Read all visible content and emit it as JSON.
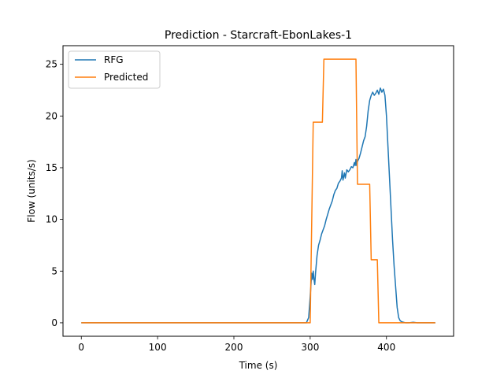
{
  "chart_data": {
    "type": "line",
    "title": "Prediction - Starcraft-EbonLakes-1",
    "xlabel": "Time (s)",
    "ylabel": "Flow (units/s)",
    "xlim": [
      -24,
      488
    ],
    "ylim": [
      -1.3,
      26.8
    ],
    "xticks": [
      0,
      100,
      200,
      300,
      400
    ],
    "yticks": [
      0,
      5,
      10,
      15,
      20,
      25
    ],
    "grid": false,
    "legend": "top-left",
    "series": [
      {
        "name": "RFG",
        "color": "#1f77b4",
        "points": [
          [
            0,
            0
          ],
          [
            100,
            0
          ],
          [
            200,
            0
          ],
          [
            295,
            0
          ],
          [
            298,
            0.5
          ],
          [
            300,
            2.5
          ],
          [
            302,
            4.8
          ],
          [
            303,
            4.2
          ],
          [
            304,
            5.0
          ],
          [
            305,
            4.2
          ],
          [
            306,
            3.7
          ],
          [
            307,
            4.8
          ],
          [
            309,
            6.5
          ],
          [
            311,
            7.5
          ],
          [
            313,
            8.0
          ],
          [
            315,
            8.6
          ],
          [
            317,
            9.0
          ],
          [
            319,
            9.4
          ],
          [
            321,
            10.0
          ],
          [
            323,
            10.5
          ],
          [
            325,
            11.0
          ],
          [
            327,
            11.4
          ],
          [
            329,
            11.8
          ],
          [
            331,
            12.4
          ],
          [
            333,
            12.8
          ],
          [
            335,
            13.0
          ],
          [
            337,
            13.5
          ],
          [
            339,
            13.7
          ],
          [
            341,
            14.0
          ],
          [
            342,
            14.7
          ],
          [
            343,
            13.8
          ],
          [
            345,
            14.5
          ],
          [
            346,
            14.0
          ],
          [
            348,
            14.8
          ],
          [
            350,
            14.6
          ],
          [
            352,
            14.8
          ],
          [
            354,
            15.1
          ],
          [
            356,
            15.0
          ],
          [
            358,
            15.5
          ],
          [
            359,
            15.2
          ],
          [
            360,
            15.8
          ],
          [
            361,
            15.2
          ],
          [
            362,
            15.6
          ],
          [
            364,
            15.9
          ],
          [
            366,
            16.4
          ],
          [
            368,
            17.0
          ],
          [
            370,
            17.6
          ],
          [
            372,
            18.0
          ],
          [
            374,
            19.0
          ],
          [
            376,
            20.5
          ],
          [
            378,
            21.5
          ],
          [
            380,
            22.0
          ],
          [
            382,
            22.3
          ],
          [
            384,
            22.0
          ],
          [
            386,
            22.2
          ],
          [
            388,
            22.5
          ],
          [
            390,
            22.1
          ],
          [
            392,
            22.7
          ],
          [
            394,
            22.3
          ],
          [
            396,
            22.6
          ],
          [
            398,
            22.0
          ],
          [
            400,
            20.0
          ],
          [
            402,
            17.0
          ],
          [
            404,
            14.0
          ],
          [
            406,
            11.0
          ],
          [
            408,
            8.0
          ],
          [
            410,
            5.5
          ],
          [
            412,
            3.5
          ],
          [
            414,
            1.5
          ],
          [
            416,
            0.5
          ],
          [
            418,
            0.2
          ],
          [
            420,
            0.1
          ],
          [
            425,
            0
          ],
          [
            430,
            0
          ],
          [
            435,
            0.05
          ],
          [
            440,
            0
          ],
          [
            464,
            0
          ]
        ]
      },
      {
        "name": "Predicted",
        "color": "#ff7f0e",
        "points": [
          [
            0,
            0
          ],
          [
            300,
            0
          ],
          [
            304,
            19.4
          ],
          [
            316,
            19.4
          ],
          [
            318,
            25.5
          ],
          [
            360,
            25.5
          ],
          [
            362,
            13.4
          ],
          [
            378,
            13.4
          ],
          [
            380,
            6.1
          ],
          [
            388,
            6.1
          ],
          [
            390,
            0
          ],
          [
            464,
            0
          ]
        ]
      }
    ]
  }
}
